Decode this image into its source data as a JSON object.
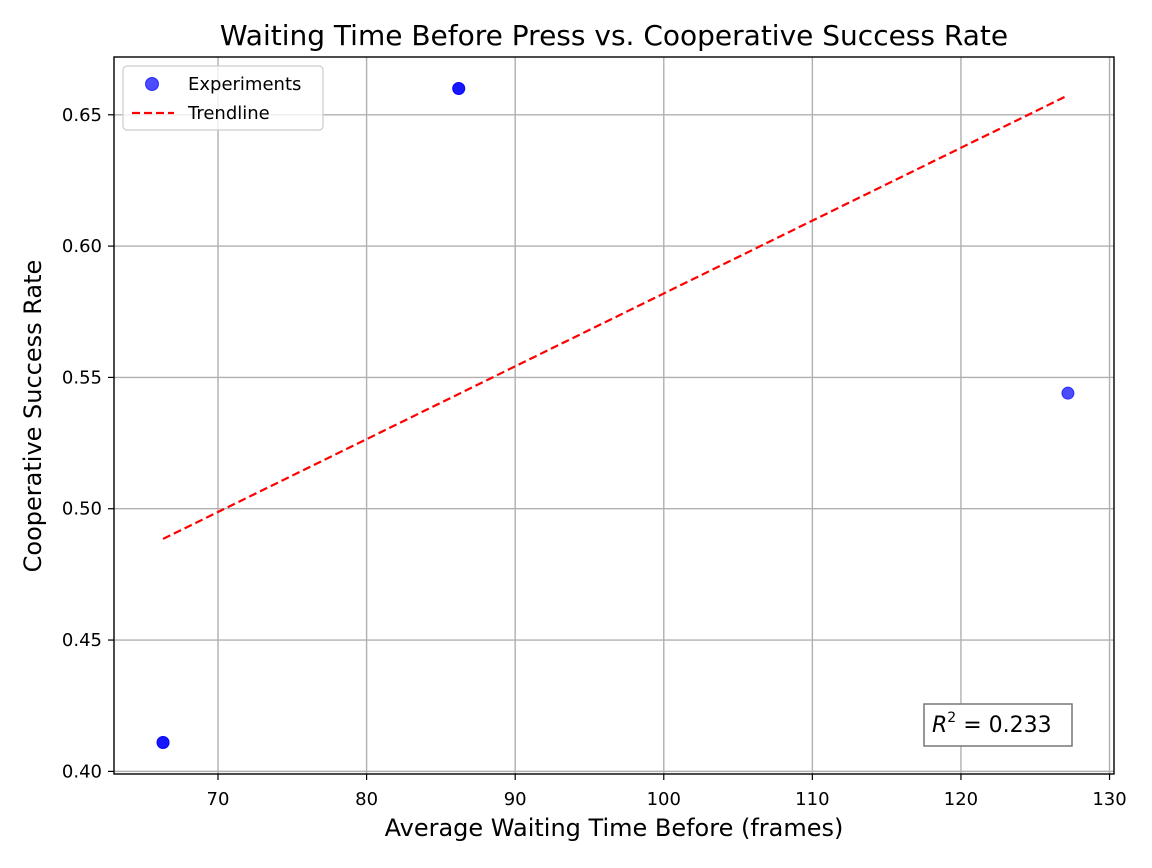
{
  "chart_data": {
    "type": "scatter",
    "title": "Waiting Time Before Press vs. Cooperative Success Rate",
    "xlabel": "Average Waiting Time Before (frames)",
    "ylabel": "Cooperative Success Rate",
    "xlim": [
      63,
      130.3
    ],
    "ylim": [
      0.399,
      0.672
    ],
    "xticks": [
      70,
      80,
      90,
      100,
      110,
      120,
      130
    ],
    "yticks": [
      0.4,
      0.45,
      0.5,
      0.55,
      0.6,
      0.65
    ],
    "xtick_labels": [
      "70",
      "80",
      "90",
      "100",
      "110",
      "120",
      "130"
    ],
    "ytick_labels": [
      "0.40",
      "0.45",
      "0.50",
      "0.55",
      "0.60",
      "0.65"
    ],
    "grid": true,
    "legend_position": "upper-left",
    "series": [
      {
        "name": "Experiments",
        "kind": "scatter",
        "color": "#0000ff",
        "x": [
          66.3,
          66.3,
          86.2,
          86.2,
          127.2
        ],
        "y": [
          0.411,
          0.411,
          0.66,
          0.66,
          0.544
        ]
      },
      {
        "name": "Trendline",
        "kind": "line",
        "style": "dashed",
        "color": "#ff0000",
        "x": [
          66.3,
          127.2
        ],
        "y": [
          0.4885,
          0.6574
        ]
      }
    ],
    "annotation": {
      "r_symbol": "R",
      "r_exponent": "2",
      "r_value_text": " = 0.233",
      "position": "lower-right"
    }
  }
}
